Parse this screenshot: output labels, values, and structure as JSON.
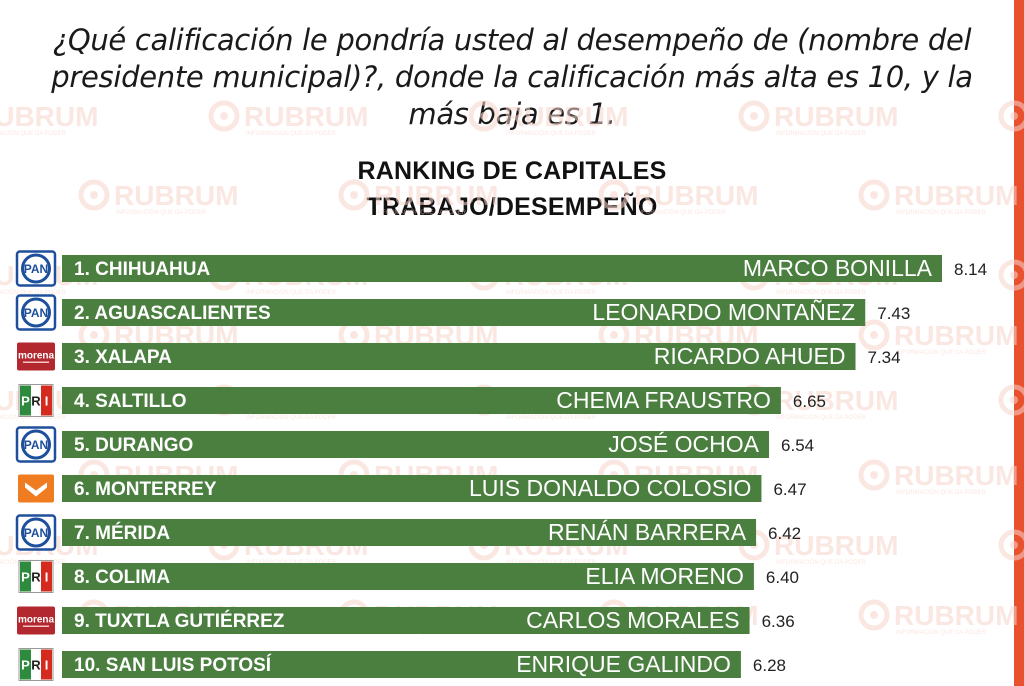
{
  "question": "¿Qué calificación le pondría usted al desempeño de (nombre del presidente municipal)?, donde la calificación más alta es 10, y la más baja es 1.",
  "watermark": {
    "text": "RUBRUM",
    "tagline": "INFORMACIÓN QUE DA PODER"
  },
  "colors": {
    "bar": "#4a7f3f",
    "accent": "#e8502e",
    "pan": "#1d4f9c",
    "morena": "#b2282e",
    "pri_green": "#2e8b3d",
    "pri_red": "#d52b1e",
    "mc": "#f07c22",
    "watermark": "#f6d4cc"
  },
  "chart_data": {
    "type": "bar",
    "orientation": "horizontal",
    "title": "RANKING DE CAPITALES",
    "subtitle": "TRABAJO/DESEMPEÑO",
    "xlim": [
      0,
      8.14
    ],
    "grid": false,
    "categories": [
      "1. CHIHUAHUA",
      "2. AGUASCALIENTES",
      "3. XALAPA",
      "4. SALTILLO",
      "5. DURANGO",
      "6. MONTERREY",
      "7. MÉRIDA",
      "8. COLIMA",
      "9. TUXTLA GUTIÉRREZ",
      "10. SAN LUIS POTOSÍ"
    ],
    "names": [
      "MARCO BONILLA",
      "LEONARDO MONTAÑEZ",
      "RICARDO AHUED",
      "CHEMA FRAUSTRO",
      "JOSÉ OCHOA",
      "LUIS DONALDO COLOSIO",
      "RENÁN BARRERA",
      "ELIA MORENO",
      "CARLOS MORALES",
      "ENRIQUE GALINDO"
    ],
    "values": [
      8.14,
      7.43,
      7.34,
      6.65,
      6.54,
      6.47,
      6.42,
      6.4,
      6.36,
      6.28
    ],
    "value_labels": [
      "8.14",
      "7.43",
      "7.34",
      "6.65",
      "6.54",
      "6.47",
      "6.42",
      "6.40",
      "6.36",
      "6.28"
    ],
    "parties": [
      "PAN",
      "PAN",
      "morena",
      "PRI",
      "PAN",
      "MC",
      "PAN",
      "PRI",
      "morena",
      "PRI"
    ]
  }
}
